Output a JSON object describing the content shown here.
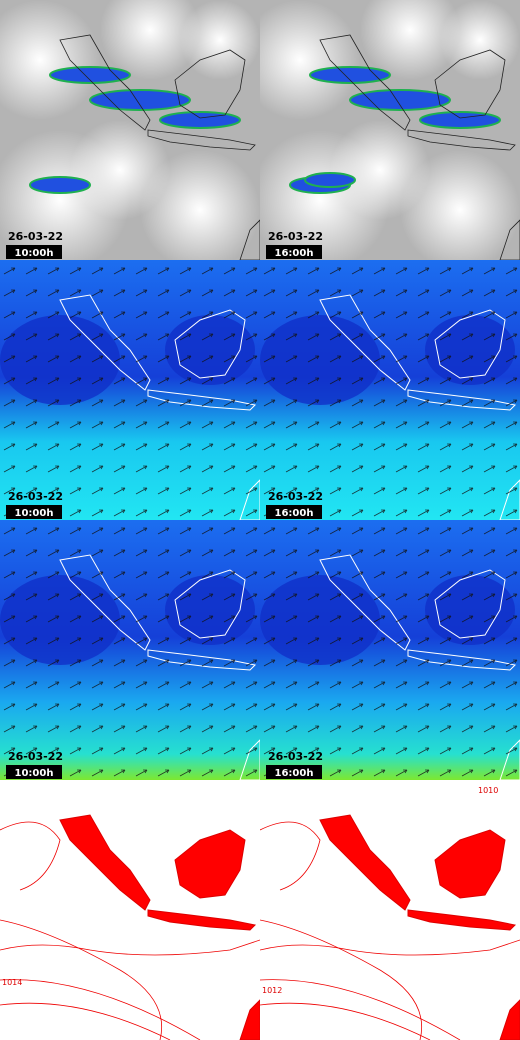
{
  "panels": [
    {
      "date": "26-03-22",
      "time": "10:00h"
    },
    {
      "date": "26-03-22",
      "time": "16:00h"
    },
    {
      "date": "26-03-22",
      "time": "10:00h"
    },
    {
      "date": "26-03-22",
      "time": "16:00h"
    },
    {
      "date": "26-03-22",
      "time": "10:00h"
    },
    {
      "date": "26-03-22",
      "time": "16:00h"
    },
    {
      "contour_labels": [
        "1014"
      ]
    },
    {
      "contour_labels": [
        "1010",
        "1012"
      ]
    }
  ]
}
